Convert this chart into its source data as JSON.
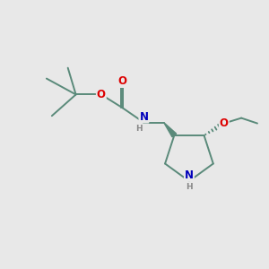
{
  "bg_color": "#e8e8e8",
  "bond_color": "#5a8a7a",
  "bond_width": 1.4,
  "atom_colors": {
    "O": "#dd0000",
    "N": "#0000bb",
    "H": "#888888",
    "C": "#5a8a7a"
  },
  "font_size_atom": 8.5,
  "font_size_H": 6.5,
  "figsize": [
    3.0,
    3.0
  ],
  "dpi": 100,
  "xlim": [
    0,
    10
  ],
  "ylim": [
    0,
    10
  ]
}
